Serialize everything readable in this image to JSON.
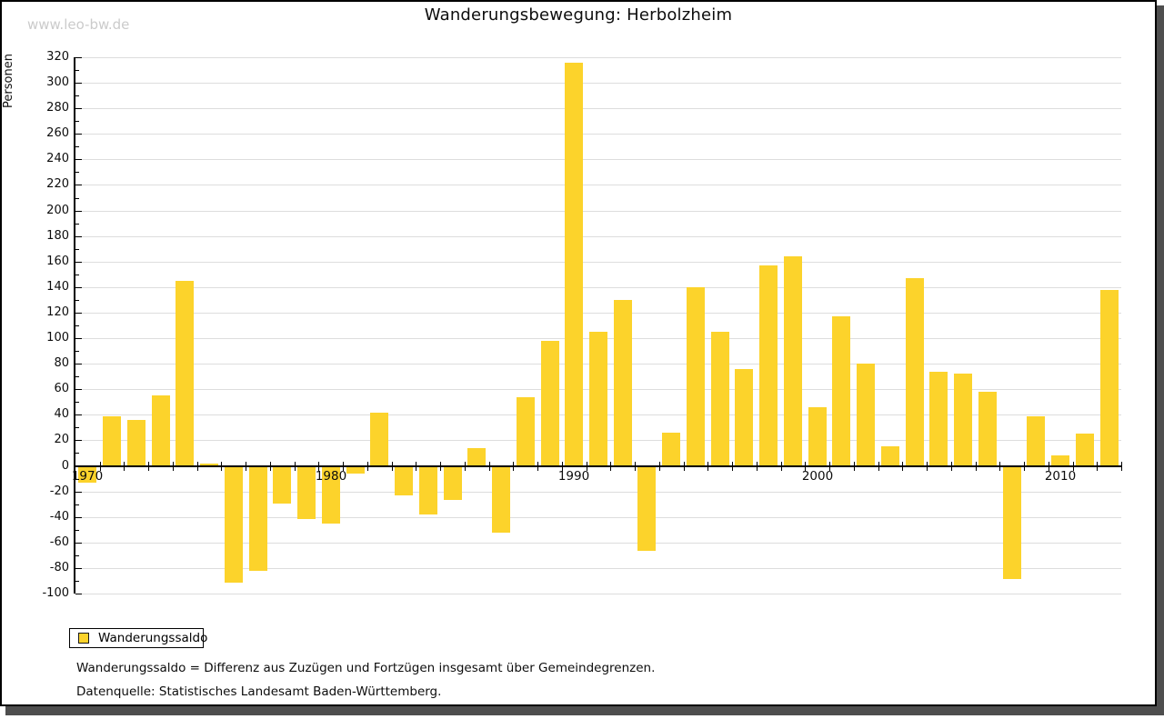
{
  "watermark": "www.leo-bw.de",
  "chart_data": {
    "type": "bar",
    "title": "Wanderungsbewegung: Herbolzheim",
    "ylabel": "Personen",
    "xlabel": "",
    "ylim": [
      -100,
      320
    ],
    "ytick_major": 20,
    "ytick_minor": 10,
    "grid": true,
    "bar_color": "#FCD32B",
    "categories": [
      1970,
      1971,
      1972,
      1973,
      1974,
      1975,
      1976,
      1977,
      1978,
      1979,
      1980,
      1981,
      1982,
      1983,
      1984,
      1985,
      1986,
      1987,
      1988,
      1989,
      1990,
      1991,
      1992,
      1993,
      1994,
      1995,
      1996,
      1997,
      1998,
      1999,
      2000,
      2001,
      2002,
      2003,
      2004,
      2005,
      2006,
      2007,
      2008,
      2009,
      2010,
      2011,
      2012
    ],
    "series": [
      {
        "name": "Wanderungssaldo",
        "values": [
          -13,
          39,
          36,
          55,
          145,
          2,
          -91,
          -82,
          -29,
          -41,
          -45,
          -6,
          42,
          -23,
          -38,
          -26,
          14,
          -52,
          54,
          98,
          316,
          105,
          130,
          -66,
          26,
          140,
          105,
          76,
          157,
          164,
          46,
          117,
          80,
          15,
          147,
          74,
          72,
          58,
          -88,
          39,
          8,
          25,
          138
        ]
      }
    ],
    "xtick_labels": [
      "1970",
      "1980",
      "1990",
      "2000",
      "2010"
    ],
    "legend": {
      "label": "Wanderungssaldo",
      "position": "bottom-left"
    }
  },
  "footnotes": {
    "definition": "Wanderungssaldo = Differenz aus Zuzügen und Fortzügen insgesamt über Gemeindegrenzen.",
    "source": "Datenquelle: Statistisches Landesamt Baden-Württemberg."
  }
}
